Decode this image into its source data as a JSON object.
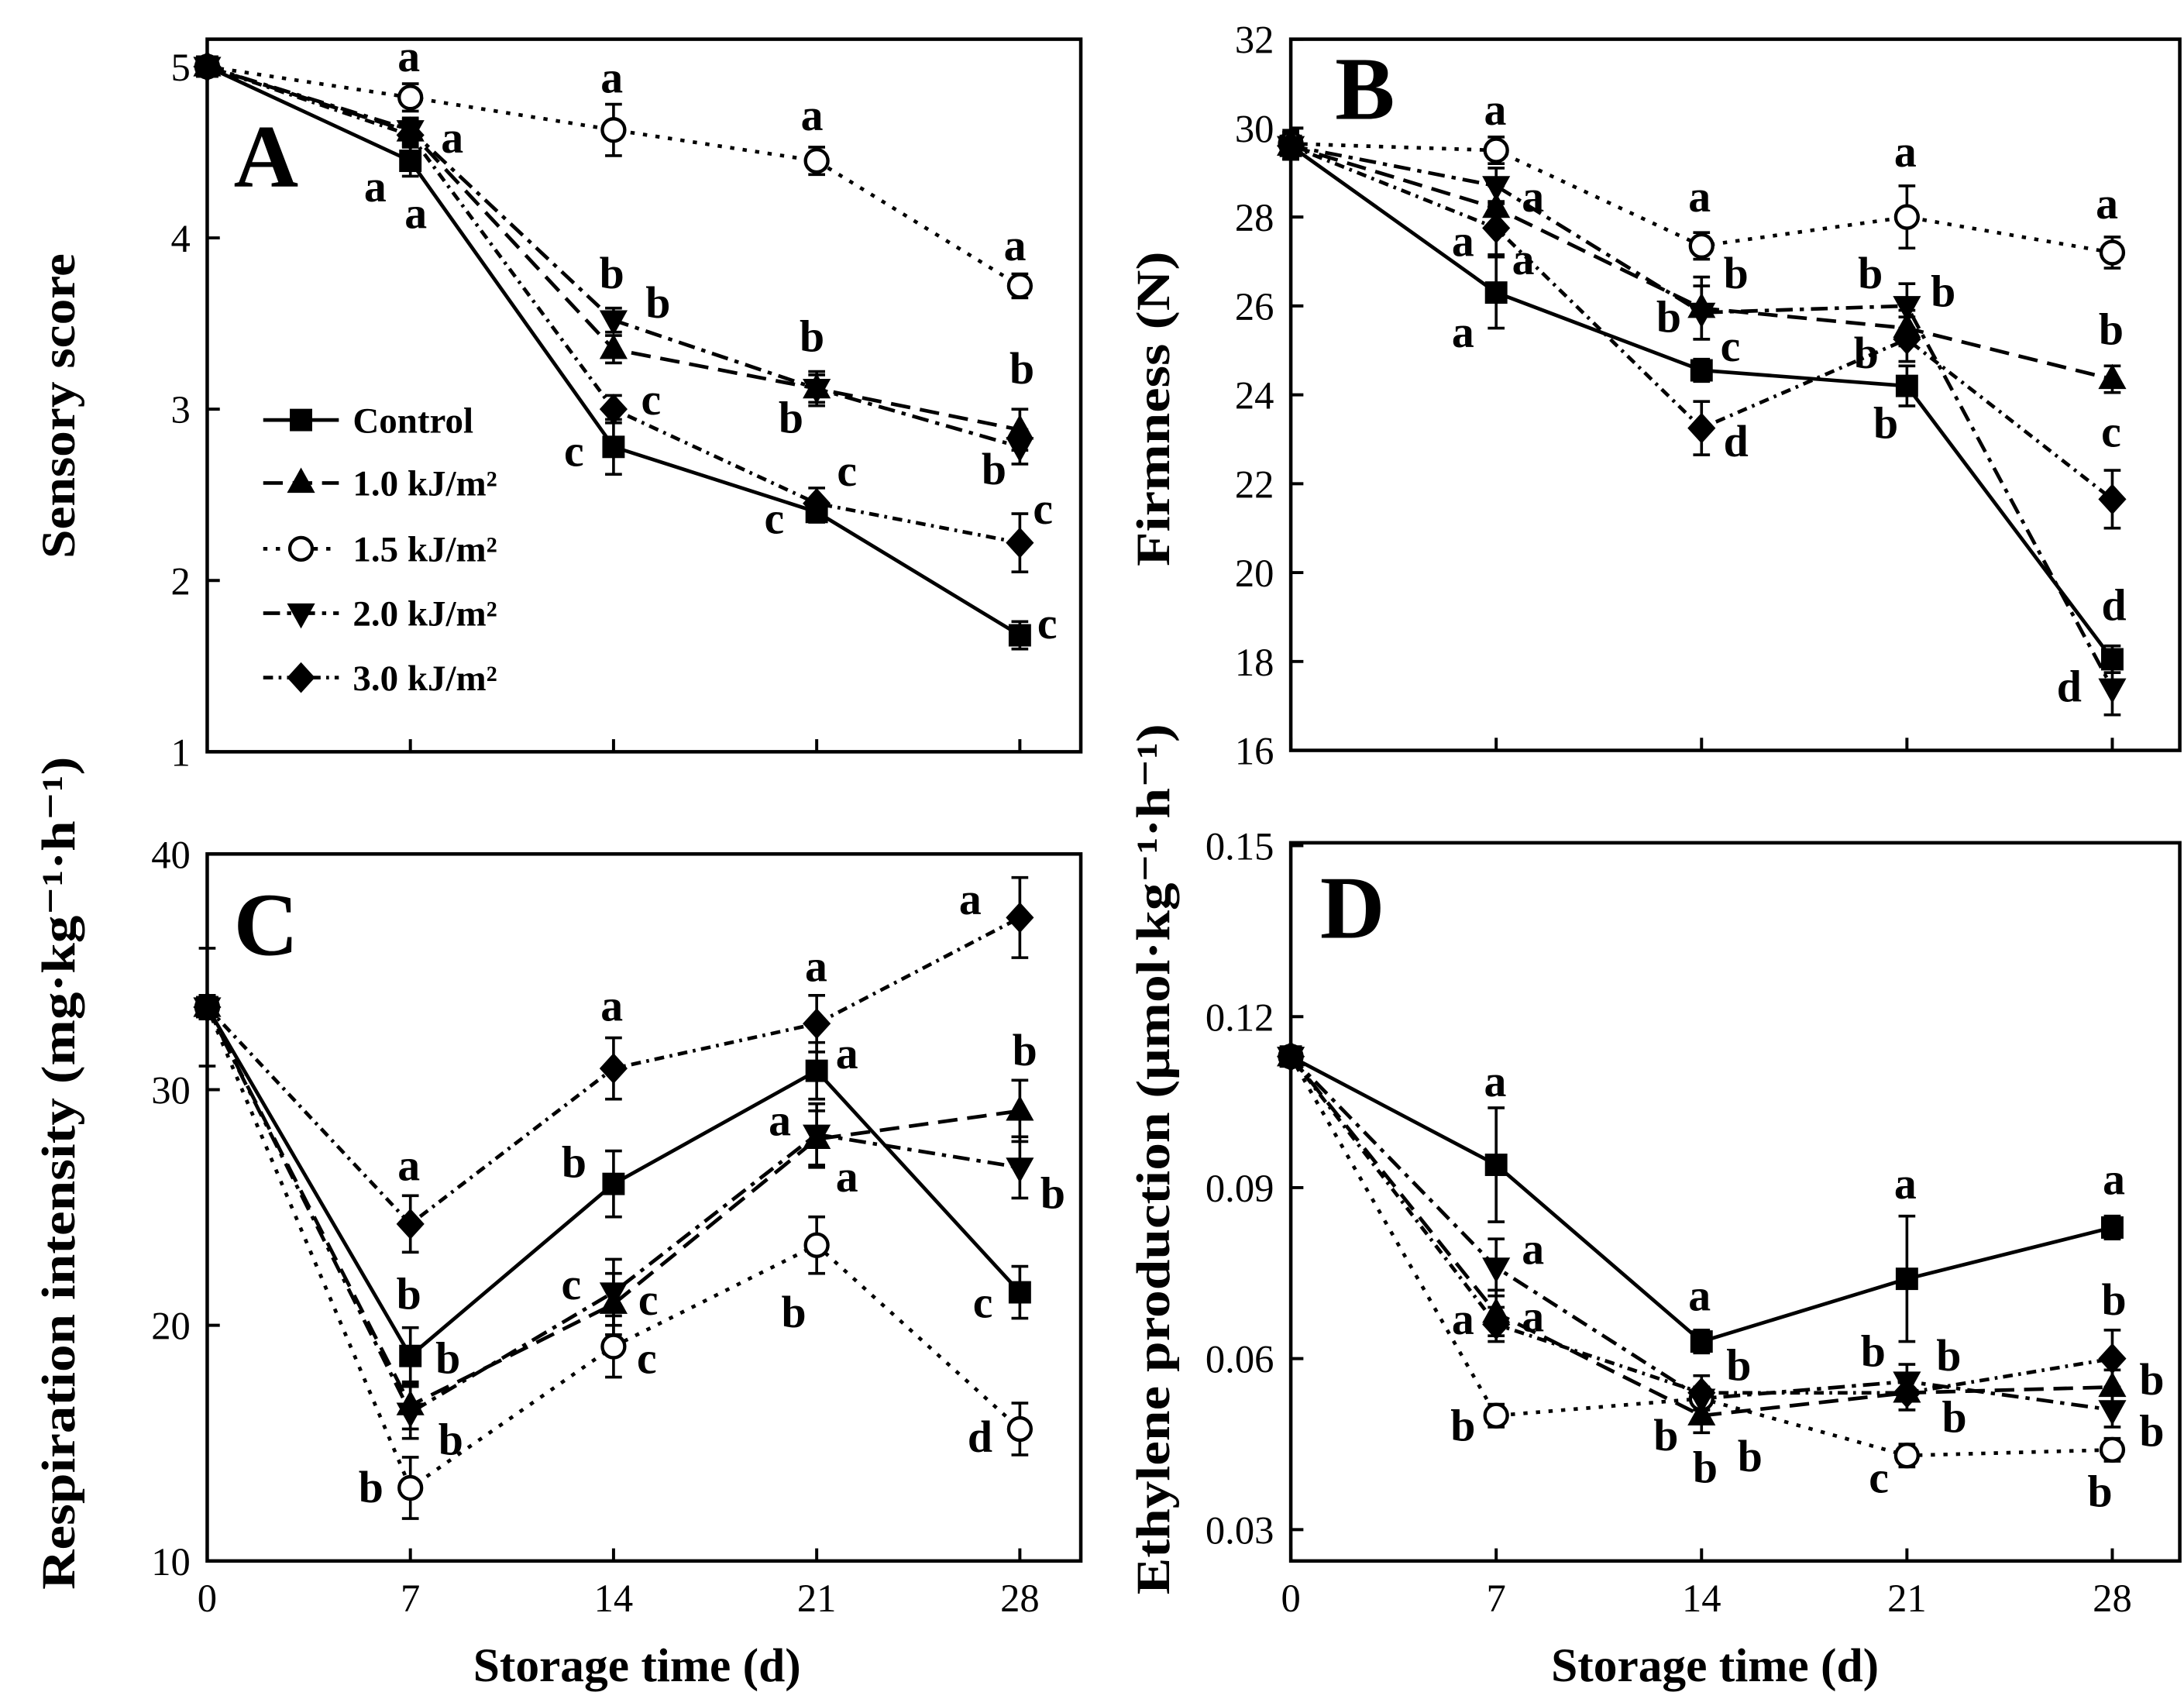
{
  "chart_data": [
    {
      "type": "line",
      "title": "A",
      "xlabel": "",
      "ylabel": "Sensory score",
      "x": [
        0,
        7,
        14,
        21,
        28
      ],
      "xlim": [
        0,
        30.1
      ],
      "ylim": [
        1,
        5.16
      ],
      "yticks": [
        "1",
        "2",
        "3",
        "4",
        "5"
      ],
      "grid": false,
      "series": [
        {
          "name": "Control",
          "values": [
            5.0,
            4.45,
            2.78,
            2.4,
            1.68
          ],
          "err": [
            0.03,
            0.09,
            0.16,
            0.06,
            0.08
          ],
          "letters": [
            null,
            "a",
            "c",
            "c",
            "c"
          ]
        },
        {
          "name": "1.0 kJ/m²",
          "values": [
            5.0,
            4.62,
            3.35,
            3.12,
            2.88
          ],
          "err": [
            0.03,
            0.07,
            0.08,
            0.08,
            0.12
          ],
          "letters": [
            null,
            "a",
            "b",
            "b",
            "b"
          ]
        },
        {
          "name": "1.5 kJ/m²",
          "values": [
            5.0,
            4.82,
            4.63,
            4.45,
            3.72
          ],
          "err": [
            0.03,
            0.08,
            0.15,
            0.08,
            0.07
          ],
          "letters": [
            null,
            "a",
            "a",
            "a",
            "a"
          ]
        },
        {
          "name": "2.0 kJ/m²",
          "values": [
            5.0,
            4.63,
            3.52,
            3.12,
            2.78
          ],
          "err": [
            0.03,
            0.07,
            0.07,
            0.1,
            0.1
          ],
          "letters": [
            null,
            "a",
            "b",
            "b",
            "b"
          ]
        },
        {
          "name": "3.0 kJ/m²",
          "values": [
            5.0,
            4.6,
            3.0,
            2.45,
            2.22
          ],
          "err": [
            0.03,
            0.07,
            0.08,
            0.09,
            0.17
          ],
          "letters": [
            null,
            null,
            "c",
            "c",
            "c"
          ]
        }
      ]
    },
    {
      "type": "line",
      "title": "B",
      "xlabel": "",
      "ylabel": "Firmness (N)",
      "x": [
        0,
        7,
        14,
        21,
        28
      ],
      "xlim": [
        0,
        30.3
      ],
      "ylim": [
        16,
        32
      ],
      "yticks": [
        "16",
        "18",
        "20",
        "22",
        "24",
        "26",
        "28",
        "30",
        "32"
      ],
      "grid": false,
      "series": [
        {
          "name": "Control",
          "values": [
            29.6,
            26.3,
            24.55,
            24.2,
            18.05
          ],
          "err": [
            0.3,
            0.8,
            0.25,
            0.45,
            0.3
          ],
          "letters": [
            null,
            "a",
            "c",
            "b",
            "d"
          ]
        },
        {
          "name": "1.0 kJ/m²",
          "values": [
            29.6,
            28.2,
            25.95,
            25.5,
            24.35
          ],
          "err": [
            0.3,
            0.5,
            0.7,
            0.4,
            0.3
          ],
          "letters": [
            null,
            "a",
            "b",
            "b",
            "b"
          ]
        },
        {
          "name": "1.5 kJ/m²",
          "values": [
            29.65,
            29.5,
            27.35,
            28.0,
            27.2
          ],
          "err": [
            0.3,
            0.3,
            0.3,
            0.7,
            0.35
          ],
          "letters": [
            null,
            "a",
            "a",
            "a",
            "a"
          ]
        },
        {
          "name": "2.0 kJ/m²",
          "values": [
            29.6,
            28.7,
            25.85,
            26.0,
            17.4
          ],
          "err": [
            0.3,
            0.4,
            0.6,
            0.5,
            0.6
          ],
          "letters": [
            null,
            "a",
            "b",
            "b",
            "d"
          ]
        },
        {
          "name": "3.0 kJ/m²",
          "values": [
            29.6,
            27.75,
            23.25,
            25.25,
            21.65
          ],
          "err": [
            0.3,
            0.6,
            0.6,
            0.5,
            0.65
          ],
          "letters": [
            null,
            "a",
            "d",
            "b",
            "c"
          ]
        }
      ]
    },
    {
      "type": "line",
      "title": "C",
      "xlabel": "Storage time (d)",
      "ylabel": "Respiration intensity (mg·kg⁻¹·h⁻¹)",
      "x": [
        0,
        7,
        14,
        21,
        28
      ],
      "xticks": [
        "0",
        "7",
        "14",
        "21",
        "28"
      ],
      "xlim": [
        0,
        30.1
      ],
      "ylim": [
        10,
        40
      ],
      "yticks": [
        "10",
        "20",
        "30",
        "40"
      ],
      "grid": false,
      "series": [
        {
          "name": "Control",
          "values": [
            33.5,
            18.7,
            26.0,
            30.8,
            21.4
          ],
          "err": [
            0.5,
            1.2,
            1.4,
            1.2,
            1.1
          ],
          "letters": [
            null,
            "b",
            "b",
            "a",
            "c"
          ]
        },
        {
          "name": "1.0 kJ/m²",
          "values": [
            33.5,
            16.6,
            20.9,
            27.9,
            29.1
          ],
          "err": [
            0.5,
            1.0,
            1.3,
            1.2,
            1.3
          ],
          "letters": [
            null,
            "b",
            "c",
            "a",
            "b"
          ]
        },
        {
          "name": "1.5 kJ/m²",
          "values": [
            33.5,
            13.1,
            19.1,
            23.4,
            15.6
          ],
          "err": [
            0.5,
            1.3,
            1.3,
            1.2,
            1.1
          ],
          "letters": [
            null,
            "b",
            "c",
            "b",
            "d"
          ]
        },
        {
          "name": "2.0 kJ/m²",
          "values": [
            33.5,
            16.3,
            21.4,
            28.1,
            26.7
          ],
          "err": [
            0.5,
            1.1,
            1.4,
            1.3,
            1.3
          ],
          "letters": [
            null,
            "b",
            "c",
            "a",
            "b"
          ]
        },
        {
          "name": "3.0 kJ/m²",
          "values": [
            33.5,
            24.3,
            30.9,
            32.8,
            37.3
          ],
          "err": [
            2.5,
            1.2,
            1.3,
            1.2,
            1.7
          ],
          "letters": [
            null,
            "a",
            "a",
            "a",
            "a"
          ]
        }
      ]
    },
    {
      "type": "line",
      "title": "D",
      "xlabel": "Storage time (d)",
      "ylabel": "Ethylene production (μmol·kg⁻¹·h⁻¹)",
      "x": [
        0,
        7,
        14,
        21,
        28
      ],
      "xticks": [
        "0",
        "7",
        "14",
        "21",
        "28"
      ],
      "xlim": [
        0,
        30.3
      ],
      "ylim": [
        0.0245,
        0.1505
      ],
      "yticks": [
        "0.03",
        "0.06",
        "0.09",
        "0.12",
        "0.15"
      ],
      "grid": false,
      "series": [
        {
          "name": "Control",
          "values": [
            0.113,
            0.094,
            0.063,
            0.074,
            0.083
          ],
          "err": [
            0.001,
            0.01,
            0.002,
            0.011,
            0.002
          ],
          "letters": [
            null,
            "a",
            "a",
            "a",
            "a"
          ]
        },
        {
          "name": "1.0 kJ/m²",
          "values": [
            0.113,
            0.068,
            0.05,
            0.054,
            0.055
          ],
          "err": [
            0.001,
            0.004,
            0.003,
            0.003,
            0.003
          ],
          "letters": [
            null,
            "a",
            "b",
            "b",
            "b"
          ]
        },
        {
          "name": "1.5 kJ/m²",
          "values": [
            0.113,
            0.05,
            0.053,
            0.043,
            0.044
          ],
          "err": [
            0.001,
            0.002,
            0.002,
            0.002,
            0.002
          ],
          "letters": [
            null,
            "b",
            "b",
            "c",
            "b"
          ]
        },
        {
          "name": "2.0 kJ/m²",
          "values": [
            0.113,
            0.076,
            0.053,
            0.056,
            0.051
          ],
          "err": [
            0.001,
            0.005,
            0.002,
            0.003,
            0.003
          ],
          "letters": [
            null,
            "a",
            "b",
            "b",
            "b"
          ]
        },
        {
          "name": "3.0 kJ/m²",
          "values": [
            0.113,
            0.066,
            0.054,
            0.054,
            0.06
          ],
          "err": [
            0.001,
            0.003,
            0.003,
            0.003,
            0.005
          ],
          "letters": [
            null,
            "a",
            "b",
            "b",
            "b"
          ]
        }
      ]
    }
  ]
}
